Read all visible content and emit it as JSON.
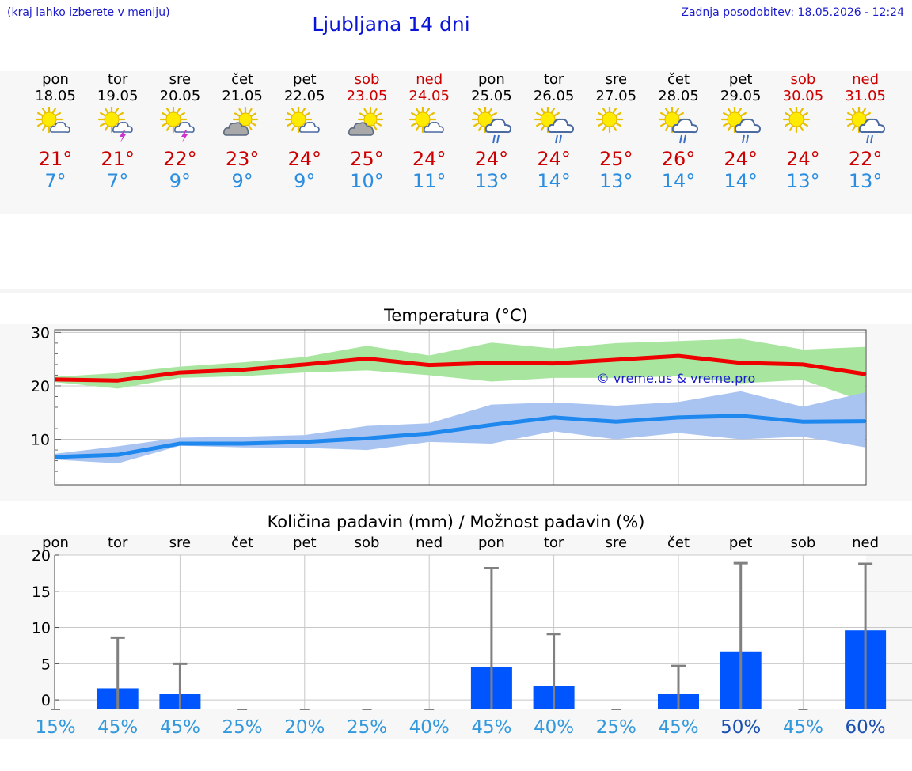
{
  "header": {
    "hint": "(kraj lahko izberete v meniju)",
    "title": "Ljubljana 14 dni",
    "updated": "Zadnja posodobitev: 18.05.2026 - 12:24"
  },
  "days": [
    {
      "name": "pon",
      "date": "18.05",
      "weekend": false,
      "icon": "sun-cloud-icon",
      "tmax": "21°",
      "tmin": "7°"
    },
    {
      "name": "tor",
      "date": "19.05",
      "weekend": false,
      "icon": "sun-storm-icon",
      "tmax": "21°",
      "tmin": "7°"
    },
    {
      "name": "sre",
      "date": "20.05",
      "weekend": false,
      "icon": "sun-storm-icon",
      "tmax": "22°",
      "tmin": "9°"
    },
    {
      "name": "čet",
      "date": "21.05",
      "weekend": false,
      "icon": "cloud-sun-icon",
      "tmax": "23°",
      "tmin": "9°"
    },
    {
      "name": "pet",
      "date": "22.05",
      "weekend": false,
      "icon": "sun-cloud-icon",
      "tmax": "24°",
      "tmin": "9°"
    },
    {
      "name": "sob",
      "date": "23.05",
      "weekend": true,
      "icon": "cloud-sun-icon",
      "tmax": "25°",
      "tmin": "10°"
    },
    {
      "name": "ned",
      "date": "24.05",
      "weekend": true,
      "icon": "sun-cloud-icon",
      "tmax": "24°",
      "tmin": "11°"
    },
    {
      "name": "pon",
      "date": "25.05",
      "weekend": false,
      "icon": "sun-rain-icon",
      "tmax": "24°",
      "tmin": "13°"
    },
    {
      "name": "tor",
      "date": "26.05",
      "weekend": false,
      "icon": "sun-rain-icon",
      "tmax": "24°",
      "tmin": "14°"
    },
    {
      "name": "sre",
      "date": "27.05",
      "weekend": false,
      "icon": "sun-icon",
      "tmax": "25°",
      "tmin": "13°"
    },
    {
      "name": "čet",
      "date": "28.05",
      "weekend": false,
      "icon": "sun-rain-icon",
      "tmax": "26°",
      "tmin": "14°"
    },
    {
      "name": "pet",
      "date": "29.05",
      "weekend": false,
      "icon": "sun-rain-icon",
      "tmax": "24°",
      "tmin": "14°"
    },
    {
      "name": "sob",
      "date": "30.05",
      "weekend": true,
      "icon": "sun-icon",
      "tmax": "24°",
      "tmin": "13°"
    },
    {
      "name": "ned",
      "date": "31.05",
      "weekend": true,
      "icon": "sun-rain-icon",
      "tmax": "22°",
      "tmin": "13°"
    }
  ],
  "colors": {
    "weekend": "#cc0000",
    "tmax": "#cc0000",
    "tmin": "#2a8de0",
    "max_line": "#ee0000",
    "max_band": "#a8e6a0",
    "min_line": "#1e88ee",
    "min_band": "#aac4f2",
    "rain_bar": "#0055ff",
    "error_bar": "#808080",
    "pct_low": "#3399dd",
    "pct_high": "#1a50b0"
  },
  "chart_data": [
    {
      "type": "line",
      "title": "Temperatura (°C)",
      "watermark": "© vreme.us & vreme.pro",
      "x": [
        "18.05",
        "19.05",
        "20.05",
        "21.05",
        "22.05",
        "23.05",
        "24.05",
        "25.05",
        "26.05",
        "27.05",
        "28.05",
        "29.05",
        "30.05",
        "31.05"
      ],
      "ylim": [
        1.5,
        30.5
      ],
      "yticks": [
        10,
        20,
        30
      ],
      "grid": true,
      "series": [
        {
          "kind": "max",
          "values": [
            21.2,
            21.0,
            22.5,
            23.0,
            24.0,
            25.1,
            23.9,
            24.3,
            24.2,
            24.9,
            25.6,
            24.3,
            24.0,
            22.2
          ],
          "band_upper": [
            21.7,
            22.4,
            23.6,
            24.4,
            25.4,
            27.5,
            25.7,
            28.1,
            27.0,
            28.0,
            28.4,
            28.8,
            26.8,
            27.3
          ],
          "band_lower": [
            20.7,
            19.5,
            21.5,
            21.8,
            22.5,
            22.9,
            22.0,
            20.8,
            21.5,
            21.5,
            21.8,
            20.5,
            21.1,
            17.0
          ]
        },
        {
          "kind": "min",
          "values": [
            6.7,
            7.1,
            9.2,
            9.2,
            9.5,
            10.2,
            11.1,
            12.7,
            14.1,
            13.3,
            14.1,
            14.4,
            13.3,
            13.4
          ],
          "band_upper": [
            7.3,
            8.7,
            10.3,
            10.5,
            10.8,
            12.5,
            13.0,
            16.5,
            16.9,
            16.3,
            17.0,
            19.0,
            16.1,
            18.8
          ],
          "band_lower": [
            6.2,
            5.5,
            8.8,
            8.5,
            8.4,
            8.0,
            9.5,
            9.2,
            11.5,
            10.0,
            11.2,
            10.0,
            10.5,
            8.5
          ]
        }
      ]
    },
    {
      "type": "bar",
      "title": "Količina padavin (mm) / Možnost padavin (%)",
      "categories": [
        "pon",
        "tor",
        "sre",
        "čet",
        "pet",
        "sob",
        "ned",
        "pon",
        "tor",
        "sre",
        "čet",
        "pet",
        "sob",
        "ned"
      ],
      "ylim": [
        -1.3,
        20
      ],
      "yticks": [
        0,
        5,
        10,
        15,
        20
      ],
      "grid": true,
      "values": [
        0,
        1.6,
        0.8,
        0,
        0,
        0,
        0,
        4.5,
        1.9,
        0,
        0.8,
        6.7,
        0,
        9.6
      ],
      "error_upper": [
        0,
        8.6,
        5.0,
        0,
        0,
        0,
        0,
        18.2,
        9.1,
        0,
        4.7,
        18.9,
        0,
        18.8
      ],
      "probability": [
        "15%",
        "45%",
        "45%",
        "25%",
        "20%",
        "25%",
        "40%",
        "45%",
        "40%",
        "25%",
        "45%",
        "50%",
        "45%",
        "60%"
      ]
    }
  ]
}
